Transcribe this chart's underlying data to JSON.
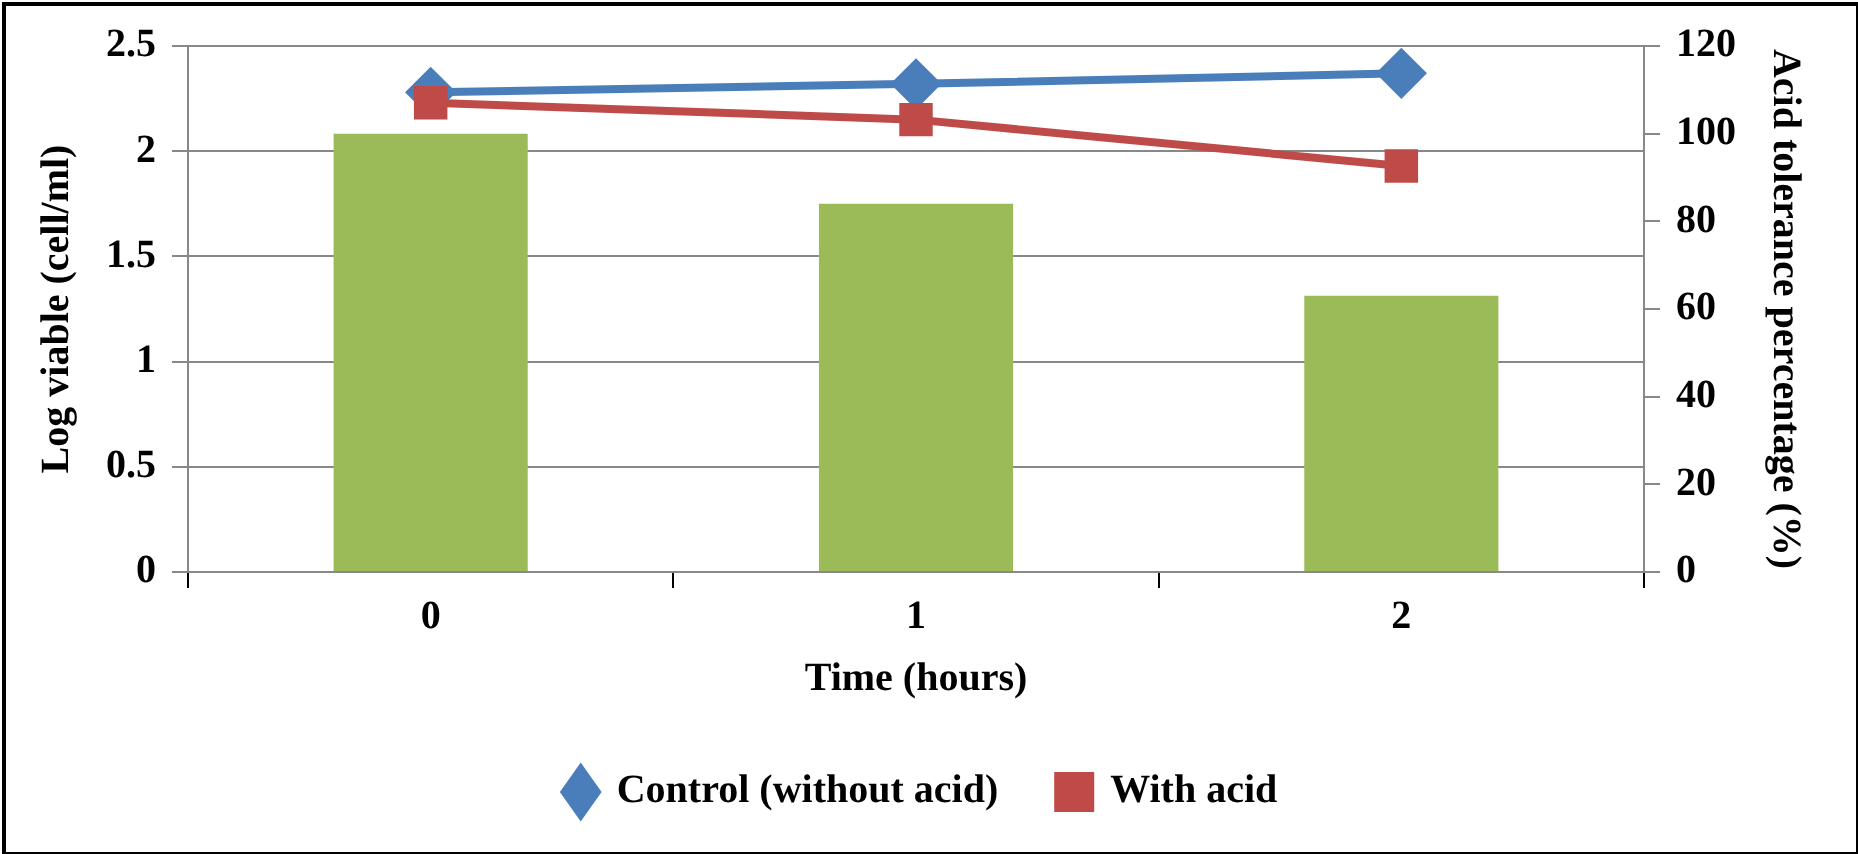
{
  "chart_data": {
    "type": "line",
    "xlabel": "Time (hours)",
    "ylabel": "Log viable (cell/ml)",
    "y2label": "Acid tolerance percentage (%)",
    "categories": [
      "0",
      "1",
      "2"
    ],
    "series": [
      {
        "type": "bar",
        "axis": "y2",
        "color": "#9bbb59",
        "values": [
          100,
          84,
          63
        ]
      },
      {
        "name": "Control (without acid)",
        "color": "#4a7ebb",
        "marker": "diamond",
        "values": [
          2.28,
          2.32,
          2.37
        ]
      },
      {
        "name": "With acid",
        "color": "#be4b48",
        "marker": "square",
        "values": [
          2.23,
          2.15,
          1.93
        ]
      }
    ],
    "ylim": [
      0,
      2.5
    ],
    "yticks": [
      0,
      0.5,
      1,
      1.5,
      2,
      2.5
    ],
    "y2lim": [
      0,
      120
    ],
    "y2ticks": [
      0,
      20,
      40,
      60,
      80,
      100,
      120
    ],
    "grid": "y",
    "legend": "bottom",
    "line_style": "solid"
  }
}
